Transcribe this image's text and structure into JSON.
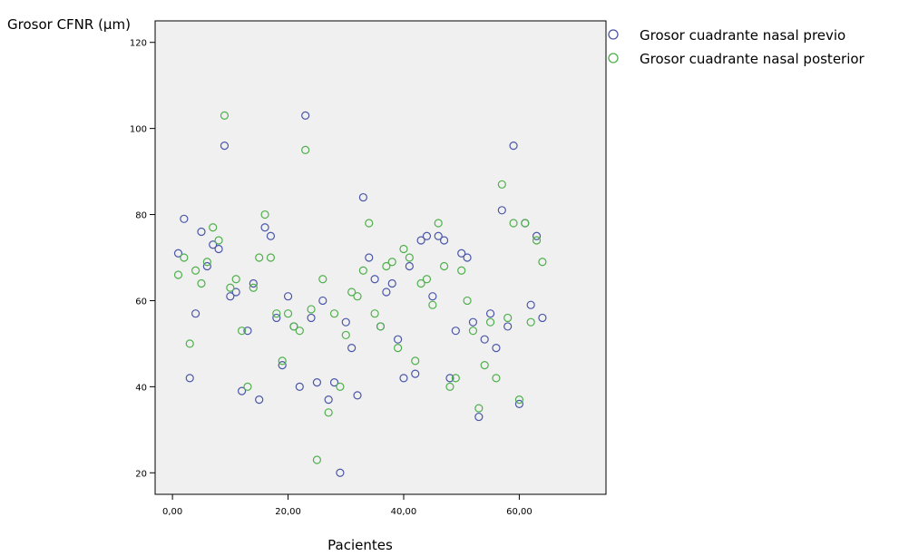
{
  "chart_data": {
    "type": "scatter",
    "ylabel": "Grosor CFNR (µm)",
    "xlabel": "Pacientes",
    "xlim": [
      -3,
      75
    ],
    "ylim": [
      15,
      125
    ],
    "x_ticks": [
      0,
      20,
      40,
      60
    ],
    "x_tick_labels": [
      "0,00",
      "20,00",
      "40,00",
      "60,00"
    ],
    "y_ticks": [
      20,
      40,
      60,
      80,
      100,
      120
    ],
    "y_tick_labels": [
      "20",
      "40",
      "60",
      "80",
      "100",
      "120"
    ],
    "grid": false,
    "legend_position": "right",
    "series": [
      {
        "name": "Grosor cuadrante nasal previo",
        "color": "#4a56a8",
        "marker": "open-circle",
        "x": [
          1,
          2,
          3,
          4,
          5,
          6,
          7,
          8,
          9,
          10,
          11,
          12,
          13,
          14,
          15,
          16,
          17,
          18,
          19,
          20,
          21,
          22,
          23,
          24,
          25,
          26,
          27,
          28,
          29,
          30,
          31,
          32,
          33,
          34,
          35,
          36,
          37,
          38,
          39,
          40,
          41,
          42,
          43,
          44,
          45,
          46,
          47,
          48,
          49,
          50,
          51,
          52,
          53,
          54,
          55,
          56,
          57,
          58,
          59,
          60,
          61,
          62,
          63,
          64
        ],
        "y": [
          71,
          79,
          42,
          57,
          76,
          68,
          73,
          72,
          96,
          61,
          62,
          39,
          53,
          64,
          37,
          77,
          75,
          56,
          45,
          61,
          54,
          40,
          103,
          56,
          41,
          60,
          37,
          41,
          20,
          55,
          49,
          38,
          84,
          70,
          65,
          54,
          62,
          64,
          51,
          42,
          68,
          43,
          74,
          75,
          61,
          75,
          74,
          42,
          53,
          71,
          70,
          55,
          33,
          51,
          57,
          49,
          81,
          54,
          96,
          36,
          78,
          59,
          75,
          56
        ]
      },
      {
        "name": "Grosor cuadrante nasal posterior",
        "color": "#4db04a",
        "marker": "open-circle",
        "x": [
          1,
          2,
          3,
          4,
          5,
          6,
          7,
          8,
          9,
          10,
          11,
          12,
          13,
          14,
          15,
          16,
          17,
          18,
          19,
          20,
          21,
          22,
          23,
          24,
          25,
          26,
          27,
          28,
          29,
          30,
          31,
          32,
          33,
          34,
          35,
          36,
          37,
          38,
          39,
          40,
          41,
          42,
          43,
          44,
          45,
          46,
          47,
          48,
          49,
          50,
          51,
          52,
          53,
          54,
          55,
          56,
          57,
          58,
          59,
          60,
          61,
          62,
          63,
          64
        ],
        "y": [
          66,
          70,
          50,
          67,
          64,
          69,
          77,
          74,
          103,
          63,
          65,
          53,
          40,
          63,
          70,
          80,
          70,
          57,
          46,
          57,
          54,
          53,
          95,
          58,
          23,
          65,
          34,
          57,
          40,
          52,
          62,
          61,
          67,
          78,
          57,
          54,
          68,
          69,
          49,
          72,
          70,
          46,
          64,
          65,
          59,
          78,
          68,
          40,
          42,
          67,
          60,
          53,
          35,
          45,
          55,
          42,
          87,
          56,
          78,
          37,
          78,
          55,
          74,
          69
        ]
      }
    ]
  }
}
